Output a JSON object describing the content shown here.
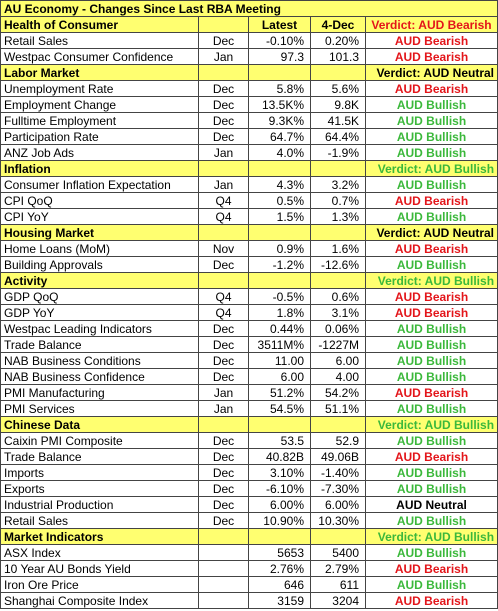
{
  "title": "AU Economy - Changes Since Last RBA Meeting",
  "columns": {
    "latest": "Latest",
    "prior": "4-Dec"
  },
  "sections": [
    {
      "name": "Health of Consumer",
      "verdict": "Verdict: AUD Bearish",
      "color": "#e3151a",
      "rows": [
        {
          "name": "Retail Sales",
          "period": "Dec",
          "latest": "-0.10%",
          "prior": "0.20%",
          "verdict": "AUD Bearish",
          "color": "#e3151a"
        },
        {
          "name": "Westpac Consumer Confidence",
          "period": "Jan",
          "latest": "97.3",
          "prior": "101.3",
          "verdict": "AUD Bearish",
          "color": "#e3151a"
        }
      ]
    },
    {
      "name": "Labor Market",
      "verdict": "Verdict: AUD Neutral",
      "color": "#000000",
      "rows": [
        {
          "name": "Unemployment Rate",
          "period": "Dec",
          "latest": "5.8%",
          "prior": "5.6%",
          "verdict": "AUD Bearish",
          "color": "#e3151a"
        },
        {
          "name": "Employment Change",
          "period": "Dec",
          "latest": "13.5K%",
          "prior": "9.8K",
          "verdict": "AUD Bullish",
          "color": "#3bb83b"
        },
        {
          "name": "Fulltime Employment",
          "period": "Dec",
          "latest": "9.3K%",
          "prior": "41.5K",
          "verdict": "AUD Bullish",
          "color": "#3bb83b"
        },
        {
          "name": "Participation Rate",
          "period": "Dec",
          "latest": "64.7%",
          "prior": "64.4%",
          "verdict": "AUD Bullish",
          "color": "#3bb83b"
        },
        {
          "name": "ANZ Job Ads",
          "period": "Jan",
          "latest": "4.0%",
          "prior": "-1.9%",
          "verdict": "AUD Bullish",
          "color": "#3bb83b"
        }
      ]
    },
    {
      "name": "Inflation",
      "verdict": "Verdict: AUD Bullish",
      "color": "#3bb83b",
      "rows": [
        {
          "name": "Consumer Inflation Expectation",
          "period": "Jan",
          "latest": "4.3%",
          "prior": "3.2%",
          "verdict": "AUD Bullish",
          "color": "#3bb83b"
        },
        {
          "name": "CPI QoQ",
          "period": "Q4",
          "latest": "0.5%",
          "prior": "0.7%",
          "verdict": "AUD Bearish",
          "color": "#e3151a"
        },
        {
          "name": "CPI YoY",
          "period": "Q4",
          "latest": "1.5%",
          "prior": "1.3%",
          "verdict": "AUD Bullish",
          "color": "#3bb83b"
        }
      ]
    },
    {
      "name": "Housing Market",
      "verdict": "Verdict: AUD Neutral",
      "color": "#000000",
      "rows": [
        {
          "name": "Home Loans (MoM)",
          "period": "Nov",
          "latest": "0.9%",
          "prior": "1.6%",
          "verdict": "AUD Bearish",
          "color": "#e3151a"
        },
        {
          "name": "Building Approvals",
          "period": "Dec",
          "latest": "-1.2%",
          "prior": "-12.6%",
          "verdict": "AUD Bullish",
          "color": "#3bb83b"
        }
      ]
    },
    {
      "name": "Activity",
      "verdict": "Verdict: AUD Bullish",
      "color": "#3bb83b",
      "rows": [
        {
          "name": "GDP QoQ",
          "period": "Q4",
          "latest": "-0.5%",
          "prior": "0.6%",
          "verdict": "AUD Bearish",
          "color": "#e3151a"
        },
        {
          "name": "GDP YoY",
          "period": "Q4",
          "latest": "1.8%",
          "prior": "3.1%",
          "verdict": "AUD Bearish",
          "color": "#e3151a"
        },
        {
          "name": "Westpac Leading Indicators",
          "period": "Dec",
          "latest": "0.44%",
          "prior": "0.06%",
          "verdict": "AUD Bullish",
          "color": "#3bb83b"
        },
        {
          "name": "Trade Balance",
          "period": "Dec",
          "latest": "3511M%",
          "prior": "-1227M",
          "verdict": "AUD Bullish",
          "color": "#3bb83b"
        },
        {
          "name": "NAB Business Conditions",
          "period": "Dec",
          "latest": "11.00",
          "prior": "6.00",
          "verdict": "AUD Bullish",
          "color": "#3bb83b"
        },
        {
          "name": "NAB Business Confidence",
          "period": "Dec",
          "latest": "6.00",
          "prior": "4.00",
          "verdict": "AUD Bullish",
          "color": "#3bb83b"
        },
        {
          "name": "PMI Manufacturing",
          "period": "Jan",
          "latest": "51.2%",
          "prior": "54.2%",
          "verdict": "AUD Bearish",
          "color": "#e3151a"
        },
        {
          "name": "PMI Services",
          "period": "Jan",
          "latest": "54.5%",
          "prior": "51.1%",
          "verdict": "AUD Bullish",
          "color": "#3bb83b"
        }
      ]
    },
    {
      "name": "Chinese Data",
      "verdict": "Verdict: AUD Bullish",
      "color": "#3bb83b",
      "rows": [
        {
          "name": "Caixin PMI Composite",
          "period": "Dec",
          "latest": "53.5",
          "prior": "52.9",
          "verdict": "AUD Bullish",
          "color": "#3bb83b"
        },
        {
          "name": "Trade Balance",
          "period": "Dec",
          "latest": "40.82B",
          "prior": "49.06B",
          "verdict": "AUD Bearish",
          "color": "#e3151a"
        },
        {
          "name": "Imports",
          "period": "Dec",
          "latest": "3.10%",
          "prior": "-1.40%",
          "verdict": "AUD Bullish",
          "color": "#3bb83b"
        },
        {
          "name": "Exports",
          "period": "Dec",
          "latest": "-6.10%",
          "prior": "-7.30%",
          "verdict": "AUD Bullish",
          "color": "#3bb83b"
        },
        {
          "name": "Industrial Production",
          "period": "Dec",
          "latest": "6.00%",
          "prior": "6.00%",
          "verdict": "AUD Neutral",
          "color": "#000000"
        },
        {
          "name": "Retail Sales",
          "period": "Dec",
          "latest": "10.90%",
          "prior": "10.30%",
          "verdict": "AUD Bullish",
          "color": "#3bb83b"
        }
      ]
    },
    {
      "name": "Market Indicators",
      "verdict": "Verdict: AUD Bullish",
      "color": "#3bb83b",
      "rows": [
        {
          "name": "ASX Index",
          "latest": "5653",
          "prior": "5400",
          "verdict": "AUD Bullish",
          "color": "#3bb83b"
        },
        {
          "name": "10 Year AU Bonds Yield",
          "latest": "2.76%",
          "prior": "2.79%",
          "verdict": "AUD Bearish",
          "color": "#e3151a"
        },
        {
          "name": "Iron Ore Price",
          "latest": "646",
          "prior": "611",
          "verdict": "AUD Bullish",
          "color": "#3bb83b"
        },
        {
          "name": "Shanghai Composite Index",
          "latest": "3159",
          "prior": "3204",
          "verdict": "AUD Bearish",
          "color": "#e3151a"
        }
      ]
    }
  ]
}
